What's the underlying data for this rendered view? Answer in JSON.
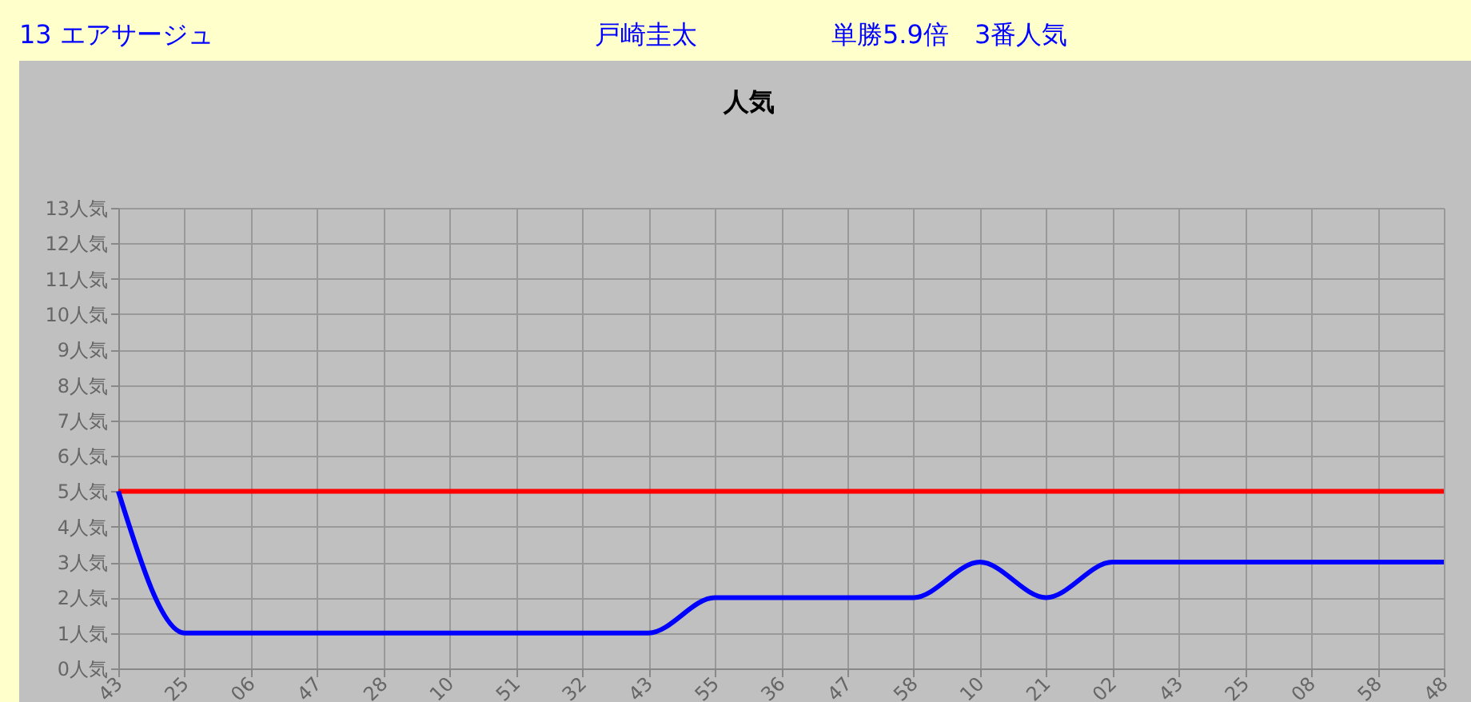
{
  "chart_data": {
    "type": "line",
    "title": "人気",
    "annotations": [
      "13 エアサージュ",
      "戸崎圭太",
      "単勝5.9倍　3番人気"
    ],
    "categories": [
      "43",
      "25",
      "06",
      "47",
      "28",
      "10",
      "51",
      "32",
      "43",
      "55",
      "36",
      "47",
      "58",
      "10",
      "21",
      "02",
      "43",
      "25",
      "08",
      "58",
      "48"
    ],
    "series": [
      {
        "color": "#ff0000",
        "values": [
          5,
          5,
          5,
          5,
          5,
          5,
          5,
          5,
          5,
          5,
          5,
          5,
          5,
          5,
          5,
          5,
          5,
          5,
          5,
          5,
          5
        ]
      },
      {
        "color": "#0000ff",
        "values": [
          5,
          1,
          1,
          1,
          1,
          1,
          1,
          1,
          1,
          2,
          2,
          2,
          2,
          3,
          2,
          3,
          3,
          3,
          3,
          3,
          3
        ]
      }
    ],
    "ylim": [
      0,
      13
    ],
    "yticks": [
      {
        "value": 0,
        "label": "0人気"
      },
      {
        "value": 1,
        "label": "1人気"
      },
      {
        "value": 2,
        "label": "2人気"
      },
      {
        "value": 3,
        "label": "3人気"
      },
      {
        "value": 4,
        "label": "4人気"
      },
      {
        "value": 5,
        "label": "5人気"
      },
      {
        "value": 6,
        "label": "6人気"
      },
      {
        "value": 7,
        "label": "7人気"
      },
      {
        "value": 8,
        "label": "8人気"
      },
      {
        "value": 9,
        "label": "9人気"
      },
      {
        "value": 10,
        "label": "10人気"
      },
      {
        "value": 11,
        "label": "11人気"
      },
      {
        "value": 12,
        "label": "12人気"
      },
      {
        "value": 13,
        "label": "13人気"
      }
    ],
    "grid": true,
    "legend": false,
    "marker": "none",
    "line_style": "solid"
  }
}
